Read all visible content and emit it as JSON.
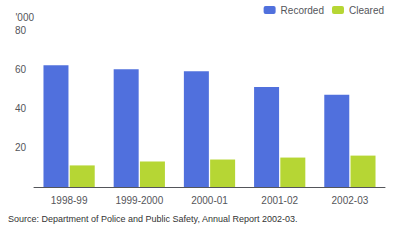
{
  "chart_data": {
    "type": "bar",
    "ylabel": "'000",
    "categories": [
      "1998-99",
      "1999-2000",
      "2000-01",
      "2001-02",
      "2002-03"
    ],
    "series": [
      {
        "name": "Recorded",
        "values": [
          62,
          60,
          59,
          51,
          47
        ]
      },
      {
        "name": "Cleared",
        "values": [
          11,
          13,
          14,
          15,
          16
        ]
      }
    ],
    "ylim": [
      0,
      80
    ],
    "yticks": [
      20,
      40,
      60,
      80
    ],
    "grid": false,
    "legend": "upper right",
    "annotations": [
      "Source: Department of Police and Public Safety, Annual Report 2002-03."
    ]
  }
}
